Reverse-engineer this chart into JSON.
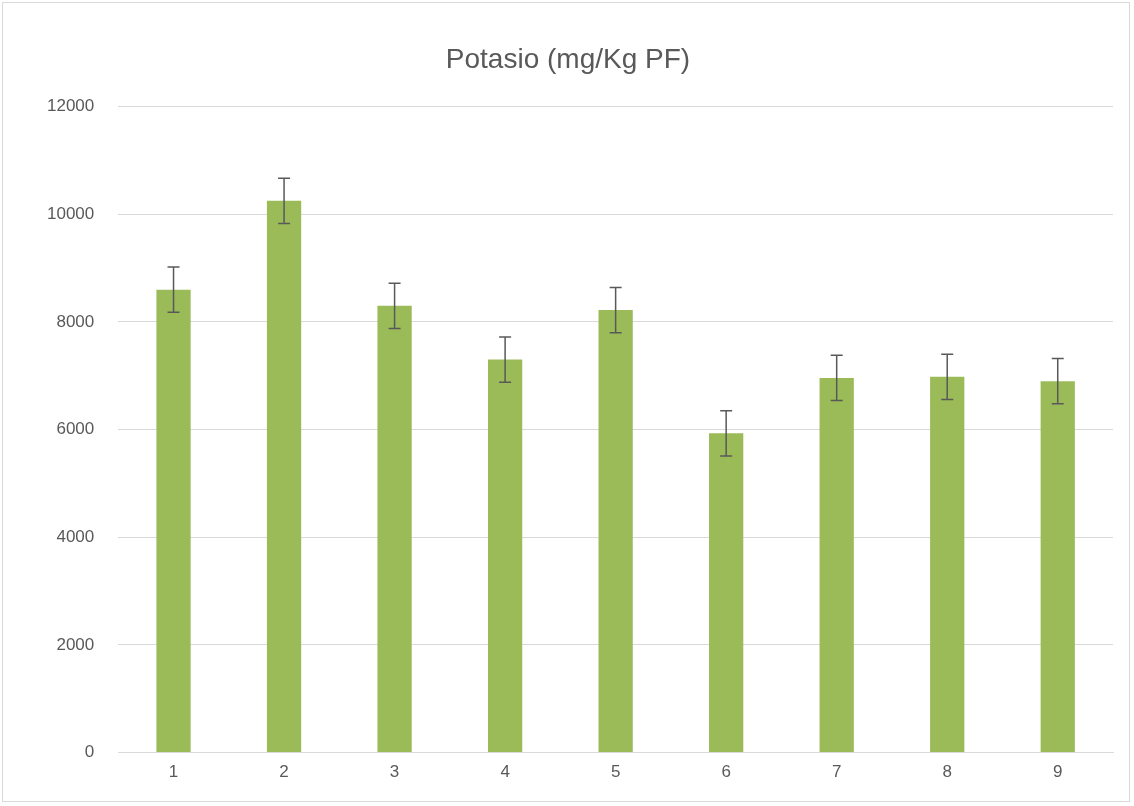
{
  "chart_data": {
    "type": "bar",
    "title": "Potasio (mg/Kg PF)",
    "categories": [
      "1",
      "2",
      "3",
      "4",
      "5",
      "6",
      "7",
      "8",
      "9"
    ],
    "values": [
      8600,
      10250,
      8300,
      7300,
      8220,
      5930,
      6960,
      6980,
      6900
    ],
    "errors": [
      420,
      420,
      420,
      420,
      420,
      420,
      420,
      420,
      420
    ],
    "color": "#9bbb59",
    "ylim": [
      0,
      12000
    ],
    "yticks": [
      0,
      2000,
      4000,
      6000,
      8000,
      10000,
      12000
    ],
    "grid": "y",
    "legend": false
  }
}
